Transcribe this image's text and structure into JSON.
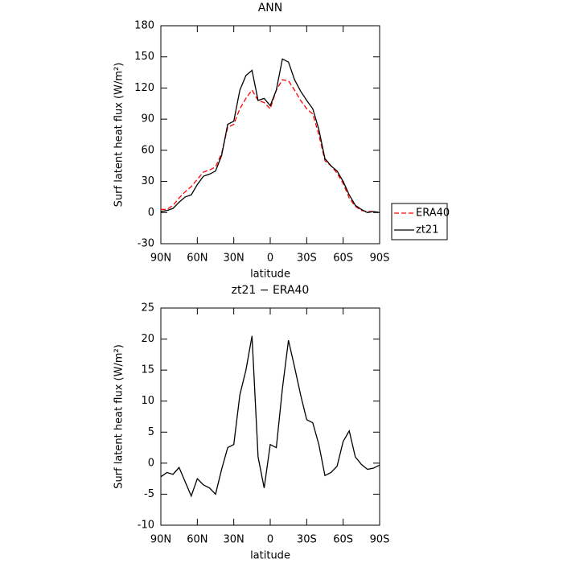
{
  "chart_data": [
    {
      "type": "line",
      "title": "ANN",
      "xlabel": "latitude",
      "ylabel": "Surf latent heat flux (W/m²)",
      "x": [
        90,
        85,
        80,
        75,
        70,
        65,
        60,
        55,
        50,
        45,
        40,
        35,
        30,
        25,
        20,
        15,
        10,
        5,
        0,
        -5,
        -10,
        -15,
        -20,
        -25,
        -30,
        -35,
        -40,
        -45,
        -50,
        -55,
        -60,
        -65,
        -70,
        -75,
        -80,
        -85,
        -90
      ],
      "series": [
        {
          "name": "ERA40",
          "color": "#ff0000",
          "dash": true,
          "values": [
            3,
            3,
            7,
            14,
            20,
            25,
            32,
            39,
            41,
            44,
            57,
            82,
            85,
            100,
            110,
            118,
            108,
            106,
            100,
            118,
            128,
            127,
            118,
            108,
            100,
            95,
            75,
            50,
            45,
            38,
            28,
            14,
            6,
            2,
            1,
            1,
            0
          ]
        },
        {
          "name": "zt21",
          "color": "#000000",
          "dash": false,
          "values": [
            1,
            2,
            4,
            10,
            15,
            17,
            27,
            35,
            37,
            40,
            55,
            85,
            88,
            118,
            132,
            137,
            108,
            110,
            103,
            118,
            148,
            145,
            128,
            117,
            108,
            100,
            80,
            52,
            45,
            40,
            30,
            17,
            7,
            3,
            0,
            1,
            0
          ]
        }
      ],
      "xlim": [
        90,
        -90
      ],
      "xticks": [
        {
          "value": 90,
          "label": "90N"
        },
        {
          "value": 60,
          "label": "60N"
        },
        {
          "value": 30,
          "label": "30N"
        },
        0,
        {
          "value": -30,
          "label": "30S"
        },
        {
          "value": -60,
          "label": "60S"
        },
        {
          "value": -90,
          "label": "90S"
        }
      ],
      "ylim": [
        -30,
        180
      ],
      "yticks": [
        -30,
        0,
        30,
        60,
        90,
        120,
        150,
        180
      ],
      "legend": "right"
    },
    {
      "type": "line",
      "title": "zt21 − ERA40",
      "xlabel": "latitude",
      "ylabel": "Surf latent heat flux (W/m²)",
      "x": [
        90,
        85,
        80,
        75,
        70,
        65,
        60,
        55,
        50,
        45,
        40,
        35,
        30,
        25,
        20,
        15,
        10,
        5,
        0,
        -5,
        -10,
        -15,
        -20,
        -25,
        -30,
        -35,
        -40,
        -45,
        -50,
        -55,
        -60,
        -65,
        -70,
        -75,
        -80,
        -85,
        -90
      ],
      "values": [
        -2.2,
        -1.5,
        -1.8,
        -0.7,
        -3,
        -5.3,
        -2.5,
        -3.5,
        -4,
        -5,
        -1,
        2.5,
        3,
        11,
        15,
        20.5,
        1,
        -4,
        3,
        2.5,
        12,
        19.8,
        15.5,
        11,
        7,
        6.5,
        3,
        -2,
        -1.5,
        -0.5,
        3.5,
        5.2,
        1,
        -0.2,
        -1,
        -0.8,
        -0.3
      ],
      "color": "#000000",
      "xlim": [
        90,
        -90
      ],
      "xticks": [
        {
          "value": 90,
          "label": "90N"
        },
        {
          "value": 60,
          "label": "60N"
        },
        {
          "value": 30,
          "label": "30N"
        },
        0,
        {
          "value": -30,
          "label": "30S"
        },
        {
          "value": -60,
          "label": "60S"
        },
        {
          "value": -90,
          "label": "90S"
        }
      ],
      "ylim": [
        -10,
        25
      ],
      "yticks": [
        -10,
        -5,
        0,
        5,
        10,
        15,
        20,
        25
      ]
    }
  ]
}
